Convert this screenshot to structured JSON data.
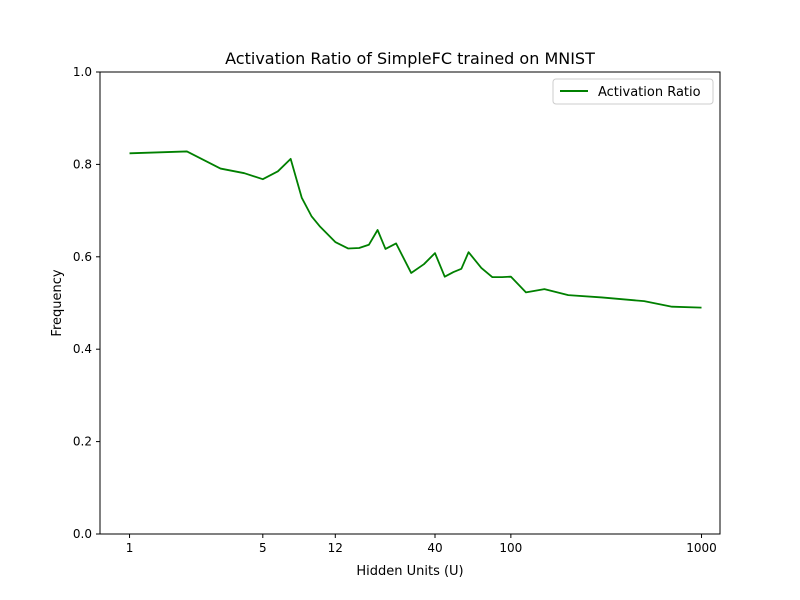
{
  "chart_data": {
    "type": "line",
    "title": "Activation Ratio of SimpleFC trained on MNIST",
    "xlabel": "Hidden Units (U)",
    "ylabel": "Frequency",
    "x_scale": "log",
    "xlim": [
      0.7,
      1250
    ],
    "ylim": [
      0.0,
      1.0
    ],
    "x_ticks": [
      1,
      5,
      12,
      40,
      100,
      1000
    ],
    "x_tick_labels": [
      "1",
      "5",
      "12",
      "40",
      "100",
      "1000"
    ],
    "y_ticks": [
      0.0,
      0.2,
      0.4,
      0.6,
      0.8,
      1.0
    ],
    "y_tick_labels": [
      "0.0",
      "0.2",
      "0.4",
      "0.6",
      "0.8",
      "1.0"
    ],
    "grid": false,
    "legend_position": "upper right",
    "series": [
      {
        "name": "Activation Ratio",
        "color": "#008000",
        "x": [
          1,
          2,
          3,
          4,
          5,
          6,
          7,
          8,
          9,
          10,
          12,
          14,
          16,
          18,
          20,
          22,
          25,
          30,
          35,
          40,
          45,
          50,
          55,
          60,
          70,
          80,
          90,
          100,
          120,
          150,
          200,
          300,
          500,
          700,
          1000
        ],
        "y": [
          0.824,
          0.828,
          0.791,
          0.781,
          0.768,
          0.785,
          0.812,
          0.728,
          0.688,
          0.665,
          0.632,
          0.618,
          0.619,
          0.626,
          0.658,
          0.617,
          0.629,
          0.565,
          0.584,
          0.608,
          0.557,
          0.567,
          0.574,
          0.61,
          0.576,
          0.556,
          0.556,
          0.557,
          0.523,
          0.53,
          0.517,
          0.512,
          0.504,
          0.492,
          0.49
        ]
      }
    ]
  }
}
